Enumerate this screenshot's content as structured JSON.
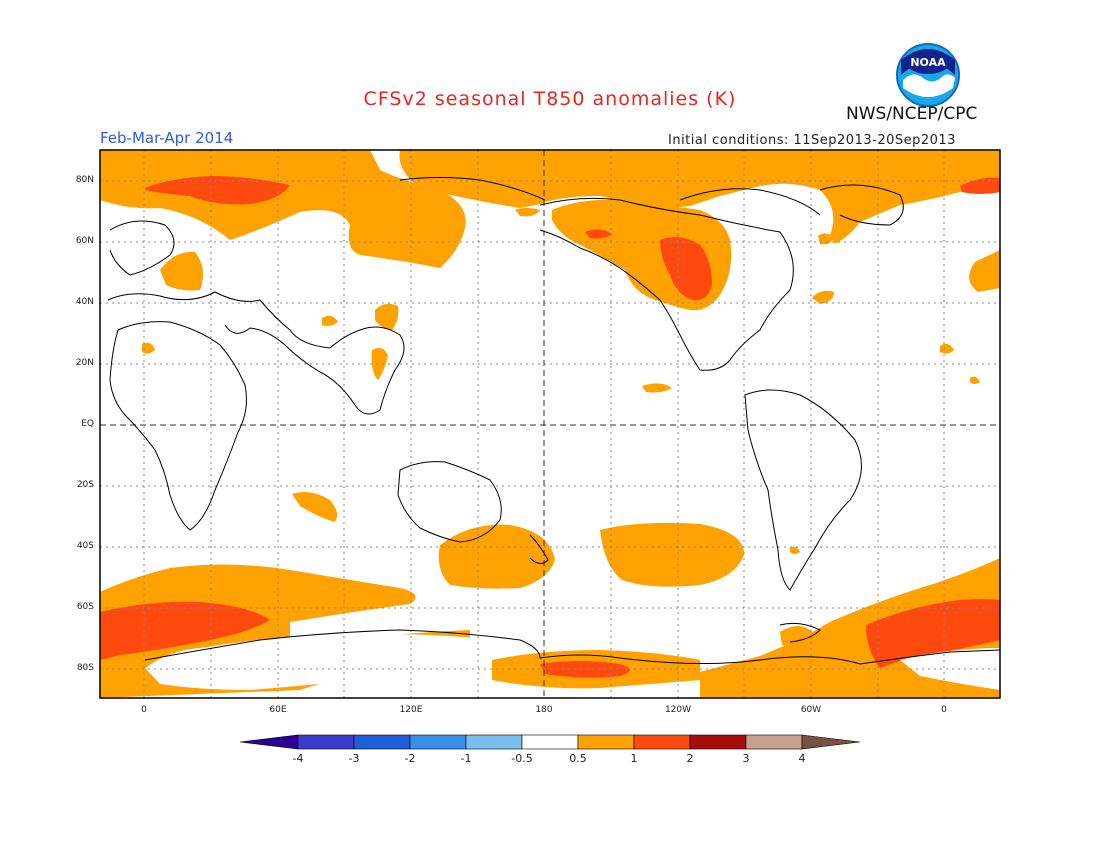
{
  "header": {
    "title": "CFSv2 seasonal T850 anomalies (K)",
    "agency": "NWS/NCEP/CPC",
    "period": "Feb-Mar-Apr 2014",
    "initial_conditions": "Initial conditions: 11Sep2013-20Sep2013"
  },
  "logo": {
    "text": "NOAA",
    "icon": "noaa-logo"
  },
  "map": {
    "projection": "cylindrical equidistant, 0 to 360, 90S to 90N",
    "lat_labels": [
      "80N",
      "60N",
      "40N",
      "20N",
      "EQ",
      "20S",
      "40S",
      "60S",
      "80S"
    ],
    "lon_labels": [
      "0",
      "60E",
      "120E",
      "180",
      "120W",
      "60W",
      "0"
    ],
    "colors": {
      "anom_0_5_1": "#ffa200",
      "anom_1_2": "#ff4a0f",
      "coast": "#000000"
    }
  },
  "colorbar": {
    "labels": [
      "-4",
      "-3",
      "-2",
      "-1",
      "-0.5",
      "0.5",
      "1",
      "2",
      "3",
      "4"
    ],
    "colors": [
      "#2a0096",
      "#3c3ccc",
      "#1e5fd6",
      "#3b8ee8",
      "#7bbef0",
      "#ffffff",
      "#ffa200",
      "#ff4a0f",
      "#a60e0e",
      "#c9a08c",
      "#7a5040"
    ]
  }
}
